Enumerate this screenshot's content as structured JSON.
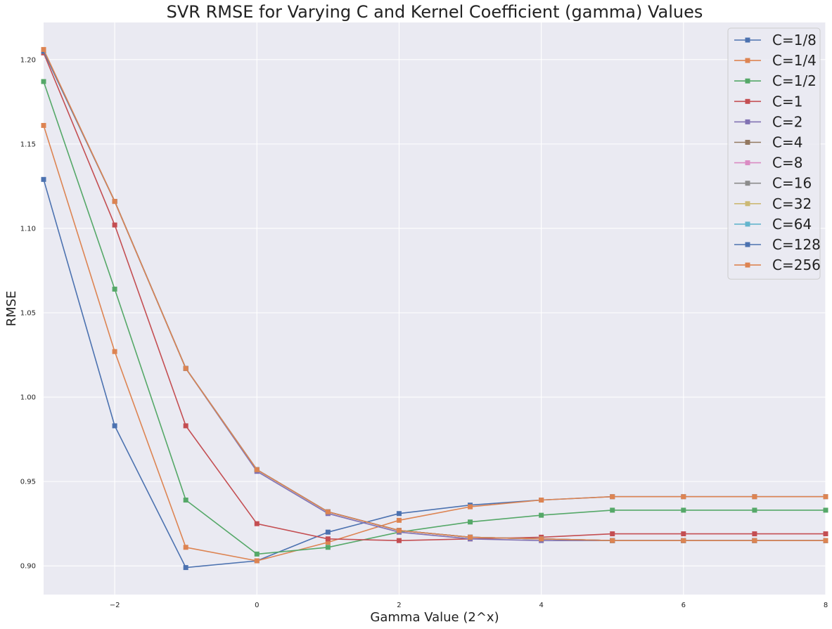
{
  "chart_data": {
    "type": "line",
    "title": "SVR RMSE for Varying C and Kernel Coefficient (gamma) Values",
    "xlabel": "Gamma Value (2^x)",
    "ylabel": "RMSE",
    "xlim": [
      -3,
      8
    ],
    "ylim": [
      0.883,
      1.222
    ],
    "xticks": [
      -2,
      0,
      2,
      4,
      6,
      8
    ],
    "yticks": [
      0.9,
      0.95,
      1.0,
      1.05,
      1.1,
      1.15,
      1.2
    ],
    "xtick_labels": [
      "−2",
      "0",
      "2",
      "4",
      "6",
      "8"
    ],
    "ytick_labels": [
      "0.90",
      "0.95",
      "1.00",
      "1.05",
      "1.10",
      "1.15",
      "1.20"
    ],
    "grid": true,
    "legend_position": "top-right",
    "marker": "square",
    "x": [
      -3,
      -2,
      -1,
      0,
      1,
      2,
      3,
      4,
      5,
      6,
      7,
      8
    ],
    "series": [
      {
        "name": "C=1/8",
        "color": "#4c72b0",
        "values": [
          1.129,
          0.983,
          0.899,
          0.903,
          0.92,
          0.931,
          0.936,
          0.939,
          0.941,
          0.941,
          0.941,
          0.941
        ]
      },
      {
        "name": "C=1/4",
        "color": "#dd8452",
        "values": [
          1.161,
          1.027,
          0.911,
          0.903,
          0.914,
          0.927,
          0.935,
          0.939,
          0.941,
          0.941,
          0.941,
          0.941
        ]
      },
      {
        "name": "C=1/2",
        "color": "#55a868",
        "values": [
          1.187,
          1.064,
          0.939,
          0.907,
          0.911,
          0.92,
          0.926,
          0.93,
          0.933,
          0.933,
          0.933,
          0.933
        ]
      },
      {
        "name": "C=1",
        "color": "#c44e52",
        "values": [
          1.204,
          1.102,
          0.983,
          0.925,
          0.916,
          0.915,
          0.916,
          0.917,
          0.919,
          0.919,
          0.919,
          0.919
        ]
      },
      {
        "name": "C=2",
        "color": "#8172b3",
        "values": [
          1.205,
          1.116,
          1.017,
          0.956,
          0.931,
          0.92,
          0.916,
          0.915,
          0.915,
          0.915,
          0.915,
          0.915
        ]
      },
      {
        "name": "C=4",
        "color": "#937860",
        "values": [
          1.205,
          1.116,
          1.017,
          0.957,
          0.932,
          0.921,
          0.917,
          0.916,
          0.915,
          0.915,
          0.915,
          0.915
        ]
      },
      {
        "name": "C=8",
        "color": "#da8bc3",
        "values": [
          1.205,
          1.116,
          1.017,
          0.957,
          0.932,
          0.921,
          0.917,
          0.916,
          0.915,
          0.915,
          0.915,
          0.915
        ]
      },
      {
        "name": "C=16",
        "color": "#8c8c8c",
        "values": [
          1.205,
          1.116,
          1.017,
          0.957,
          0.932,
          0.921,
          0.917,
          0.916,
          0.915,
          0.915,
          0.915,
          0.915
        ]
      },
      {
        "name": "C=32",
        "color": "#ccb974",
        "values": [
          1.205,
          1.116,
          1.017,
          0.957,
          0.932,
          0.921,
          0.917,
          0.916,
          0.915,
          0.915,
          0.915,
          0.915
        ]
      },
      {
        "name": "C=64",
        "color": "#64b5cd",
        "values": [
          1.205,
          1.116,
          1.017,
          0.957,
          0.932,
          0.921,
          0.917,
          0.916,
          0.915,
          0.915,
          0.915,
          0.915
        ]
      },
      {
        "name": "C=128",
        "color": "#4c72b0",
        "values": [
          1.205,
          1.116,
          1.017,
          0.957,
          0.932,
          0.921,
          0.917,
          0.916,
          0.915,
          0.915,
          0.915,
          0.915
        ]
      },
      {
        "name": "C=256",
        "color": "#dd8452",
        "values": [
          1.206,
          1.116,
          1.017,
          0.957,
          0.932,
          0.921,
          0.917,
          0.916,
          0.915,
          0.915,
          0.915,
          0.915
        ]
      }
    ]
  },
  "style": {
    "plot_background": "#eaeaf2",
    "grid_color": "#ffffff"
  }
}
